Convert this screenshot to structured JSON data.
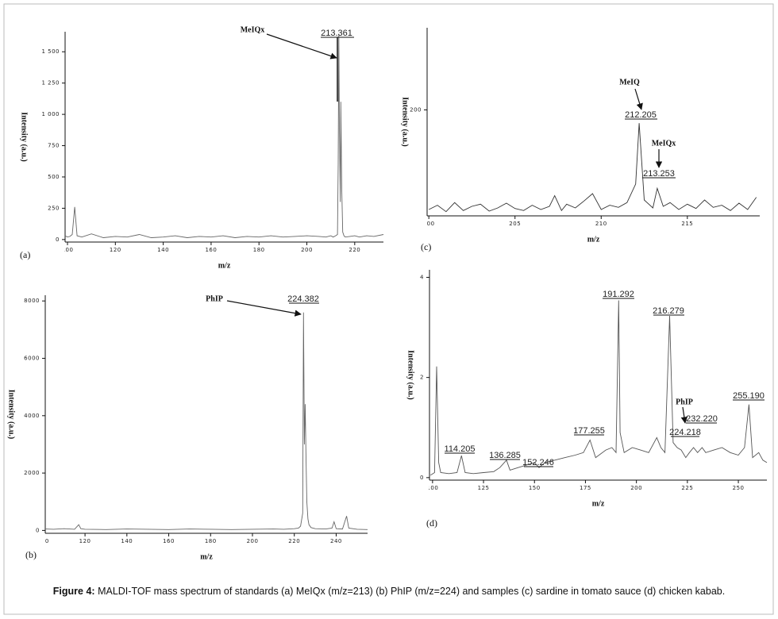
{
  "caption": {
    "label": "Figure 4:",
    "text": "MALDI-TOF mass spectrum of standards (a) MeIQx (m/z=213) (b) PhIP (m/z=224) and samples (c) sardine in tomato sauce (d) chicken kabab."
  },
  "chart_data": [
    {
      "type": "line",
      "panel": "(a)",
      "xlabel": "m/z",
      "ylabel": "Intensity (a.u.)",
      "color": "#666666",
      "xlim": [
        99,
        232
      ],
      "ylim": [
        -20,
        1660
      ],
      "xticks": [
        100,
        120,
        140,
        160,
        180,
        200,
        220
      ],
      "yticks": [
        0,
        250,
        500,
        750,
        {
          "value": 1000,
          "label": "1 000"
        },
        {
          "value": 1250,
          "label": "1 250"
        },
        {
          "value": 1500,
          "label": "1 500"
        }
      ],
      "x": [
        99,
        100,
        101,
        102,
        103,
        104,
        106,
        110,
        115,
        120,
        125,
        130,
        135,
        140,
        145,
        150,
        155,
        160,
        165,
        170,
        175,
        180,
        185,
        190,
        195,
        200,
        205,
        208,
        210,
        211,
        212,
        212.8,
        213.1,
        213.361,
        213.6,
        214,
        214.2,
        214.6,
        215,
        215.5,
        216,
        218,
        220,
        222,
        225,
        228,
        232
      ],
      "values": [
        30,
        20,
        25,
        40,
        260,
        30,
        20,
        45,
        15,
        25,
        20,
        40,
        15,
        20,
        30,
        15,
        25,
        20,
        30,
        15,
        25,
        20,
        30,
        20,
        25,
        30,
        25,
        20,
        30,
        20,
        30,
        40,
        600,
        1640,
        900,
        300,
        1100,
        400,
        60,
        30,
        20,
        25,
        30,
        20,
        30,
        25,
        40
      ],
      "peak_labels": [
        "213.361"
      ],
      "compounds": [
        "MeIQx"
      ]
    },
    {
      "type": "line",
      "panel": "(b)",
      "xlabel": "m/z",
      "ylabel": "Intensity (a.u.)",
      "color": "#666666",
      "xlim": [
        101,
        255
      ],
      "ylim": [
        -100,
        8200
      ],
      "xticks": [
        100,
        120,
        140,
        160,
        180,
        200,
        220,
        240
      ],
      "yticks": [
        0,
        2000,
        4000,
        6000,
        8000
      ],
      "x": [
        101,
        105,
        110,
        115,
        117,
        118,
        120,
        130,
        140,
        150,
        160,
        170,
        180,
        190,
        200,
        210,
        215,
        220,
        222,
        223,
        224,
        224.382,
        224.8,
        225.2,
        225.6,
        226,
        226.5,
        227,
        228,
        230,
        235,
        238,
        239,
        240,
        243,
        245,
        246,
        250,
        255
      ],
      "values": [
        50,
        40,
        60,
        40,
        200,
        60,
        40,
        30,
        50,
        40,
        30,
        50,
        40,
        30,
        40,
        50,
        40,
        60,
        80,
        150,
        600,
        7600,
        3000,
        4400,
        2500,
        1000,
        400,
        200,
        100,
        60,
        50,
        80,
        300,
        60,
        50,
        500,
        80,
        40,
        30
      ],
      "peak_labels": [
        "224.382"
      ],
      "compounds": [
        "PhIP"
      ]
    },
    {
      "type": "line",
      "panel": "(c)",
      "xlabel": "m/z",
      "ylabel": "Intensity (a.u.)",
      "color": "#333333",
      "xlim": [
        199.9,
        219.2
      ],
      "ylim": [
        0,
        355
      ],
      "xticks": [
        200,
        205,
        210,
        215
      ],
      "yticks": [
        200
      ],
      "x": [
        200,
        200.5,
        201,
        201.5,
        202,
        202.5,
        203,
        203.5,
        204,
        204.5,
        205,
        205.5,
        206,
        206.5,
        207,
        207.3,
        207.7,
        208,
        208.5,
        209,
        209.5,
        210,
        210.5,
        211,
        211.5,
        212,
        212.205,
        212.5,
        213,
        213.253,
        213.6,
        214,
        214.5,
        215,
        215.5,
        216,
        216.5,
        217,
        217.5,
        218,
        218.5,
        219
      ],
      "values": [
        12,
        20,
        8,
        25,
        10,
        18,
        22,
        9,
        15,
        24,
        14,
        10,
        20,
        12,
        18,
        38,
        10,
        22,
        15,
        28,
        42,
        12,
        20,
        16,
        25,
        60,
        175,
        30,
        15,
        52,
        18,
        25,
        12,
        22,
        14,
        30,
        16,
        20,
        10,
        24,
        12,
        35
      ],
      "peak_labels": [
        "212.205",
        "213.253"
      ],
      "compounds": [
        "MeIQ",
        "MeIQx"
      ]
    },
    {
      "type": "line",
      "panel": "(d)",
      "xlabel": "m/z",
      "ylabel": "Intensity (a.u.)",
      "color": "#555555",
      "xlim": [
        98.5,
        264
      ],
      "ylim": [
        -0.05,
        4.15
      ],
      "xticks": [
        100,
        125,
        150,
        175,
        200,
        225,
        250
      ],
      "yticks": [
        0,
        2,
        4
      ],
      "x": [
        99,
        101,
        102,
        103,
        104,
        108,
        112,
        114.205,
        116,
        120,
        125,
        130,
        133,
        136.285,
        138,
        142,
        146,
        150,
        152.246,
        155,
        160,
        165,
        170,
        174,
        177.255,
        180,
        185,
        188,
        190,
        191.292,
        192,
        194,
        198,
        202,
        206,
        210,
        212,
        214,
        216.279,
        218,
        220,
        222,
        224.218,
        226,
        228,
        230,
        232.22,
        234,
        238,
        242,
        246,
        250,
        253,
        255.19,
        257,
        260,
        262,
        264
      ],
      "values": [
        0.05,
        0.1,
        2.22,
        0.3,
        0.1,
        0.08,
        0.1,
        0.44,
        0.1,
        0.08,
        0.1,
        0.12,
        0.2,
        0.35,
        0.15,
        0.2,
        0.25,
        0.3,
        0.2,
        0.3,
        0.35,
        0.4,
        0.45,
        0.5,
        0.75,
        0.4,
        0.55,
        0.6,
        0.5,
        3.54,
        0.9,
        0.5,
        0.6,
        0.55,
        0.5,
        0.8,
        0.6,
        0.5,
        3.23,
        0.7,
        0.6,
        0.55,
        0.4,
        0.5,
        0.6,
        0.5,
        0.6,
        0.5,
        0.55,
        0.6,
        0.5,
        0.45,
        0.6,
        1.46,
        0.4,
        0.5,
        0.35,
        0.3
      ],
      "peak_labels": [
        "114.205",
        "136.285",
        "152.246",
        "177.255",
        "191.292",
        "216.279",
        "224.218",
        "232.220",
        "255.190"
      ],
      "compounds": [
        "PhIP"
      ]
    }
  ]
}
